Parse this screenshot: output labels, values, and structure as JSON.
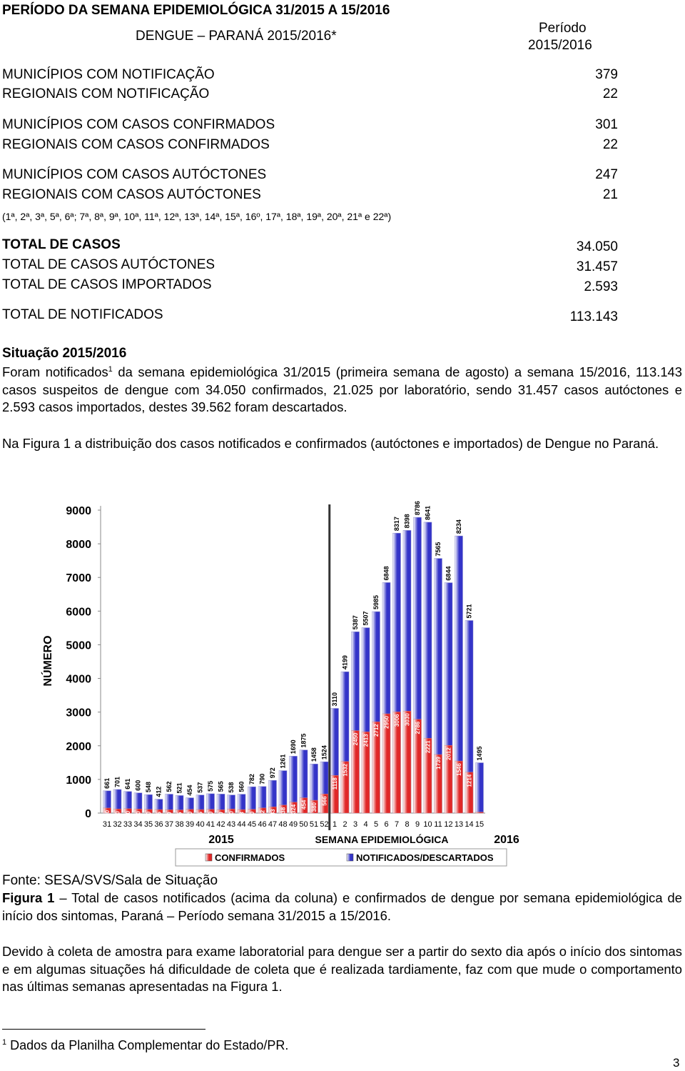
{
  "header": {
    "title": "PERÍODO DA SEMANA EPIDEMIOLÓGICA 31/2015 A 15/2016",
    "subtitle": "DENGUE – PARANÁ 2015/2016*",
    "period_label": "Período",
    "period": "2015/2016"
  },
  "summary": {
    "rows": [
      [
        "MUNICÍPIOS COM NOTIFICAÇÃO",
        "379"
      ],
      [
        "REGIONAIS COM NOTIFICAÇÃO",
        "22"
      ],
      [
        "MUNICÍPIOS COM CASOS CONFIRMADOS",
        "301"
      ],
      [
        "REGIONAIS COM CASOS CONFIRMADOS",
        "22"
      ],
      [
        "MUNICÍPIOS COM CASOS AUTÓCTONES",
        "247"
      ],
      [
        "REGIONAIS COM CASOS AUTÓCTONES",
        "21"
      ]
    ],
    "note": "(1ª, 2ª, 3ª, 5ª, 6ª; 7ª, 8ª, 9ª, 10ª, 11ª, 12ª, 13ª, 14ª, 15ª, 16º, 17ª, 18ª, 19ª, 20ª, 21ª e 22ª)",
    "totals": [
      [
        "TOTAL DE CASOS",
        "34.050"
      ],
      [
        "TOTAL DE CASOS AUTÓCTONES",
        "31.457"
      ],
      [
        "TOTAL DE CASOS IMPORTADOS",
        "2.593"
      ],
      [
        "TOTAL DE NOTIFICADOS",
        "113.143"
      ]
    ]
  },
  "situacao": {
    "title": "Situação 2015/2016",
    "text_before": "Foram notificados",
    "footnote_ref": "1",
    "text_after": " da semana epidemiológica 31/2015 (primeira semana de agosto) a semana 15/2016, 113.143 casos suspeitos de dengue com 34.050 confirmados, 21.025 por laboratório, sendo 31.457 casos autóctones e 2.593 casos importados, destes 39.562 foram descartados.",
    "figure_intro": "Na Figura 1 a distribuição dos casos notificados e confirmados (autóctones e importados) de Dengue no Paraná."
  },
  "chart_data": {
    "type": "bar",
    "categories": [
      "31",
      "32",
      "33",
      "34",
      "35",
      "36",
      "37",
      "38",
      "39",
      "40",
      "41",
      "42",
      "43",
      "44",
      "45",
      "46",
      "47",
      "48",
      "49",
      "50",
      "51",
      "52",
      "1",
      "2",
      "3",
      "4",
      "5",
      "6",
      "7",
      "8",
      "9",
      "10",
      "11",
      "12",
      "13",
      "14",
      "15"
    ],
    "series": [
      {
        "name": "CONFIRMADOS",
        "color": "#e02828",
        "values": [
          150,
          120,
          130,
          120,
          110,
          105,
          100,
          95,
          110,
          105,
          110,
          100,
          120,
          103,
          110,
          152,
          183,
          238,
          324,
          454,
          380,
          566,
          1118,
          1532,
          2450,
          2413,
          2712,
          2950,
          3006,
          3030,
          2786,
          2221,
          1739,
          2012,
          1546,
          1214,
          30
        ]
      },
      {
        "name": "NOTIFICADOS/DESCARTADOS",
        "color": "#3434c8",
        "values": [
          661,
          701,
          641,
          600,
          548,
          412,
          562,
          521,
          454,
          537,
          575,
          565,
          538,
          560,
          782,
          790,
          972,
          1261,
          1690,
          1875,
          1458,
          1524,
          3110,
          4199,
          5387,
          5507,
          5985,
          6848,
          8317,
          8398,
          8786,
          8641,
          7565,
          6844,
          8234,
          5721,
          1495
        ]
      }
    ],
    "ylim": [
      0,
      9000
    ],
    "yticks": [
      0,
      1000,
      2000,
      3000,
      4000,
      5000,
      6000,
      7000,
      8000,
      9000
    ],
    "y_label": "NÚMERO",
    "x_label": "SEMANA EPIDEMIOLÓGICA",
    "year_labels": [
      "2015",
      "2016"
    ],
    "overlap": true,
    "grid": false,
    "legend": "bottom"
  },
  "figure": {
    "source": "Fonte: SESA/SVS/Sala de Situação",
    "label": "Figura 1",
    "caption": " – Total de casos notificados (acima da coluna) e confirmados de dengue por semana epidemiológica de início dos sintomas, Paraná – Período semana 31/2015 a 15/2016."
  },
  "note_paragraph": "Devido à coleta de amostra para exame laboratorial para dengue ser a partir do sexto dia após o início dos sintomas e em algumas situações há dificuldade de coleta que é realizada tardiamente, faz com que mude o comportamento nas últimas semanas apresentadas na Figura 1.",
  "footnote": {
    "number": "1",
    "text": "Dados da Planilha Complementar do Estado/PR."
  },
  "page_number": "3"
}
